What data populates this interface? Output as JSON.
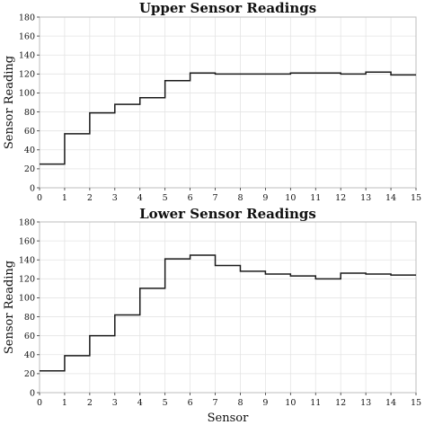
{
  "chart_data": [
    {
      "type": "line",
      "drawstyle": "step",
      "title": "Upper Sensor Readings",
      "xlabel": "",
      "ylabel": "Sensor Reading",
      "x": [
        0,
        1,
        2,
        3,
        4,
        5,
        6,
        7,
        8,
        9,
        10,
        11,
        12,
        13,
        14
      ],
      "values": [
        25,
        57,
        79,
        88,
        95,
        113,
        121,
        120,
        120,
        120,
        121,
        121,
        120,
        122,
        119
      ],
      "xlim": [
        0,
        15
      ],
      "ylim": [
        0,
        180
      ],
      "xticks": [
        0,
        1,
        2,
        3,
        4,
        5,
        6,
        7,
        8,
        9,
        10,
        11,
        12,
        13,
        14,
        15
      ],
      "yticks": [
        0,
        20,
        40,
        60,
        80,
        100,
        120,
        140,
        160,
        180
      ],
      "grid": true,
      "line_color": "#1a1a1a"
    },
    {
      "type": "line",
      "drawstyle": "step",
      "title": "Lower Sensor Readings",
      "xlabel": "Sensor",
      "ylabel": "Sensor Reading",
      "x": [
        0,
        1,
        2,
        3,
        4,
        5,
        6,
        7,
        8,
        9,
        10,
        11,
        12,
        13,
        14
      ],
      "values": [
        23,
        39,
        60,
        82,
        110,
        141,
        145,
        134,
        128,
        125,
        123,
        120,
        126,
        125,
        124
      ],
      "xlim": [
        0,
        15
      ],
      "ylim": [
        0,
        180
      ],
      "xticks": [
        0,
        1,
        2,
        3,
        4,
        5,
        6,
        7,
        8,
        9,
        10,
        11,
        12,
        13,
        14,
        15
      ],
      "yticks": [
        0,
        20,
        40,
        60,
        80,
        100,
        120,
        140,
        160,
        180
      ],
      "grid": true,
      "line_color": "#1a1a1a"
    }
  ]
}
